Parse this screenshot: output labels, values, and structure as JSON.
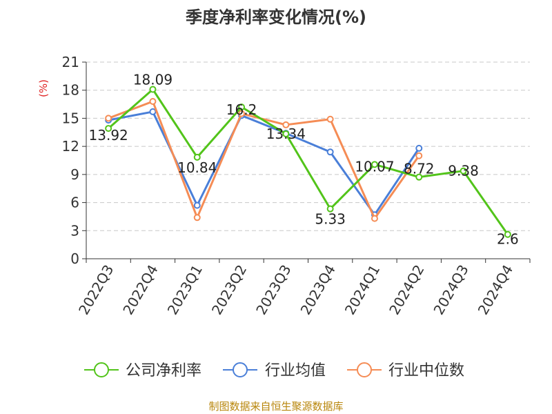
{
  "title": "季度净利率变化情况(%)",
  "source": "制图数据来自恒生聚源数据库",
  "colors": {
    "company": "#52c41a",
    "industry_avg": "#4a7fd8",
    "industry_median": "#f58c55"
  },
  "chart_data": {
    "type": "line",
    "title": "季度净利率变化情况(%)",
    "ylabel": "(%)",
    "ylim": [
      0,
      21
    ],
    "yticks": [
      0,
      3,
      6,
      9,
      12,
      15,
      18,
      21
    ],
    "grid": true,
    "legend_position": "bottom",
    "categories": [
      "2022Q3",
      "2022Q4",
      "2023Q1",
      "2023Q2",
      "2023Q3",
      "2023Q4",
      "2024Q1",
      "2024Q2",
      "2024Q3",
      "2024Q4"
    ],
    "series": [
      {
        "name": "公司净利率",
        "color": "#52c41a",
        "values": [
          13.92,
          18.09,
          10.84,
          16.2,
          13.34,
          5.33,
          10.07,
          8.72,
          9.38,
          2.6
        ],
        "labels": [
          "13.92",
          "18.09",
          "10.84",
          "16.2",
          "13.34",
          "5.33",
          "10.07",
          "8.72",
          "9.38",
          "2.6"
        ]
      },
      {
        "name": "行业均值",
        "color": "#4a7fd8",
        "values": [
          14.8,
          15.7,
          5.7,
          15.3,
          13.4,
          11.4,
          4.7,
          11.8,
          null,
          null
        ]
      },
      {
        "name": "行业中位数",
        "color": "#f58c55",
        "values": [
          15.0,
          16.8,
          4.4,
          15.5,
          14.3,
          14.9,
          4.3,
          11.0,
          null,
          null
        ]
      }
    ]
  }
}
